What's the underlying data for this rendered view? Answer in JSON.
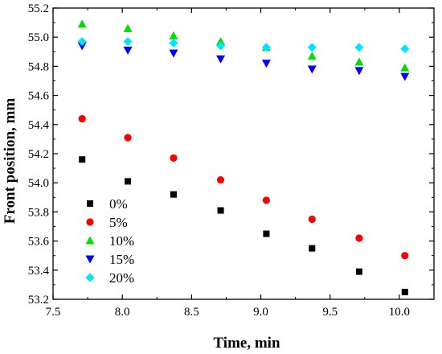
{
  "chart_data": {
    "type": "scatter",
    "title": "",
    "xlabel": "Time, min",
    "ylabel": "Front position, mm",
    "xlim": [
      7.5,
      10.25
    ],
    "ylim": [
      53.2,
      55.2
    ],
    "x_ticks": [
      7.5,
      8.0,
      8.5,
      9.0,
      9.5,
      10.0
    ],
    "y_ticks": [
      53.2,
      53.4,
      53.6,
      53.8,
      54.0,
      54.2,
      54.4,
      54.6,
      54.8,
      55.0,
      55.2
    ],
    "x_tick_labels": [
      "7.5",
      "8.0",
      "8.5",
      "9.0",
      "9.5",
      "10.0"
    ],
    "y_tick_labels": [
      "53.2",
      "53.4",
      "53.6",
      "53.8",
      "54.0",
      "54.2",
      "54.4",
      "54.6",
      "54.8",
      "55.0",
      "55.2"
    ],
    "grid": false,
    "legend_position": "lower-left",
    "x": [
      7.71,
      8.04,
      8.37,
      8.71,
      9.04,
      9.37,
      9.71,
      10.04
    ],
    "series": [
      {
        "name": "0%",
        "marker": "square",
        "color": "#000000",
        "values": [
          54.16,
          54.01,
          53.92,
          53.81,
          53.65,
          53.55,
          53.39,
          53.25
        ]
      },
      {
        "name": "5%",
        "marker": "circle",
        "color": "#ff0000",
        "values": [
          54.44,
          54.31,
          54.17,
          54.02,
          53.88,
          53.75,
          53.62,
          53.5
        ]
      },
      {
        "name": "10%",
        "marker": "triangle-up",
        "color": "#00dd00",
        "values": [
          55.09,
          55.06,
          55.01,
          54.97,
          54.93,
          54.87,
          54.83,
          54.79
        ]
      },
      {
        "name": "15%",
        "marker": "triangle-down",
        "color": "#0000ff",
        "values": [
          54.94,
          54.91,
          54.89,
          54.85,
          54.82,
          54.78,
          54.77,
          54.73
        ]
      },
      {
        "name": "20%",
        "marker": "diamond",
        "color": "#00e5ff",
        "values": [
          54.97,
          54.97,
          54.96,
          54.94,
          54.93,
          54.93,
          54.93,
          54.92
        ]
      }
    ]
  }
}
